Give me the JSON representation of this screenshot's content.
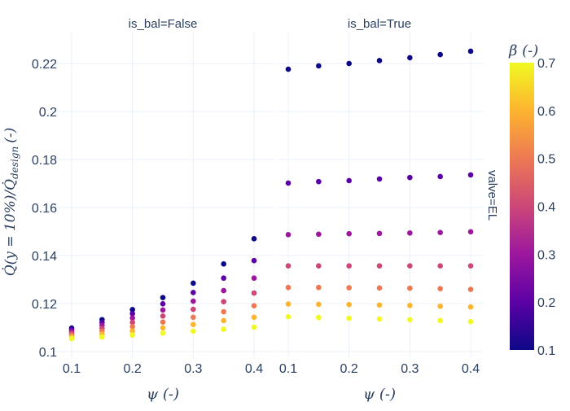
{
  "chart_data": {
    "type": "scatter",
    "ylabel": "Q̇(y = 10%)/Q̇_design (-)",
    "ylabel_main": "Q̇(y = 10%)/Q̇",
    "ylabel_sub": "design",
    "ylabel_unit": "(-)",
    "xlabel": "ψ (-)",
    "ylim": [
      0.0985,
      0.234
    ],
    "xlim": [
      0.08,
      0.42
    ],
    "yticks": [
      0.1,
      0.12,
      0.14,
      0.16,
      0.18,
      0.2,
      0.22
    ],
    "ytick_labels": [
      "0.1",
      "0.12",
      "0.14",
      "0.16",
      "0.18",
      "0.2",
      "0.22"
    ],
    "xticks": [
      0.1,
      0.2,
      0.3,
      0.4
    ],
    "xtick_labels": [
      "0.1",
      "0.2",
      "0.3",
      "0.4"
    ],
    "row_label": "valve=EL",
    "colorbar": {
      "title": "β (-)",
      "range": [
        0.1,
        0.7
      ],
      "ticks": [
        "0.1",
        "0.2",
        "0.3",
        "0.4",
        "0.5",
        "0.6",
        "0.7"
      ],
      "colors": [
        "#0d0887",
        "#5c01a6",
        "#9c179e",
        "#cc4778",
        "#ed7953",
        "#fdb42f",
        "#f0f921"
      ]
    },
    "x": [
      0.1,
      0.15,
      0.2,
      0.25,
      0.3,
      0.35,
      0.4
    ],
    "beta": [
      0.1,
      0.2,
      0.3,
      0.4,
      0.5,
      0.6,
      0.7
    ],
    "panels": [
      {
        "title": "is_bal=False",
        "series": [
          {
            "beta": 0.1,
            "values": [
              0.1098,
              0.1133,
              0.1175,
              0.1225,
              0.1285,
              0.1365,
              0.147
            ]
          },
          {
            "beta": 0.2,
            "values": [
              0.1091,
              0.1121,
              0.1158,
              0.1199,
              0.1246,
              0.1306,
              0.1379
            ]
          },
          {
            "beta": 0.3,
            "values": [
              0.1083,
              0.1109,
              0.114,
              0.1173,
              0.121,
              0.1254,
              0.1306
            ]
          },
          {
            "beta": 0.4,
            "values": [
              0.1076,
              0.1097,
              0.1122,
              0.1148,
              0.1176,
              0.1208,
              0.1244
            ]
          },
          {
            "beta": 0.5,
            "values": [
              0.1069,
              0.1085,
              0.1104,
              0.1123,
              0.1143,
              0.1166,
              0.1191
            ]
          },
          {
            "beta": 0.6,
            "values": [
              0.1061,
              0.1073,
              0.1086,
              0.1099,
              0.1113,
              0.1129,
              0.1143
            ]
          },
          {
            "beta": 0.7,
            "values": [
              0.1054,
              0.1061,
              0.1069,
              0.1077,
              0.1085,
              0.1093,
              0.1102
            ]
          }
        ]
      },
      {
        "title": "is_bal=True",
        "series": [
          {
            "beta": 0.1,
            "values": [
              0.2176,
              0.219,
              0.22,
              0.2212,
              0.2224,
              0.2237,
              0.2251
            ]
          },
          {
            "beta": 0.2,
            "values": [
              0.1702,
              0.1708,
              0.1712,
              0.1719,
              0.1725,
              0.1729,
              0.1736
            ]
          },
          {
            "beta": 0.3,
            "values": [
              0.1487,
              0.1489,
              0.1491,
              0.1492,
              0.1494,
              0.1496,
              0.1499
            ]
          },
          {
            "beta": 0.4,
            "values": [
              0.1357,
              0.1357,
              0.1357,
              0.1357,
              0.1357,
              0.1357,
              0.1357
            ]
          },
          {
            "beta": 0.5,
            "values": [
              0.1267,
              0.1267,
              0.1266,
              0.1265,
              0.1264,
              0.1262,
              0.1259
            ]
          },
          {
            "beta": 0.6,
            "values": [
              0.1198,
              0.1197,
              0.1196,
              0.1194,
              0.1192,
              0.1189,
              0.1186
            ]
          },
          {
            "beta": 0.7,
            "values": [
              0.1145,
              0.1142,
              0.1139,
              0.1136,
              0.1133,
              0.1129,
              0.1125
            ]
          }
        ]
      }
    ]
  }
}
